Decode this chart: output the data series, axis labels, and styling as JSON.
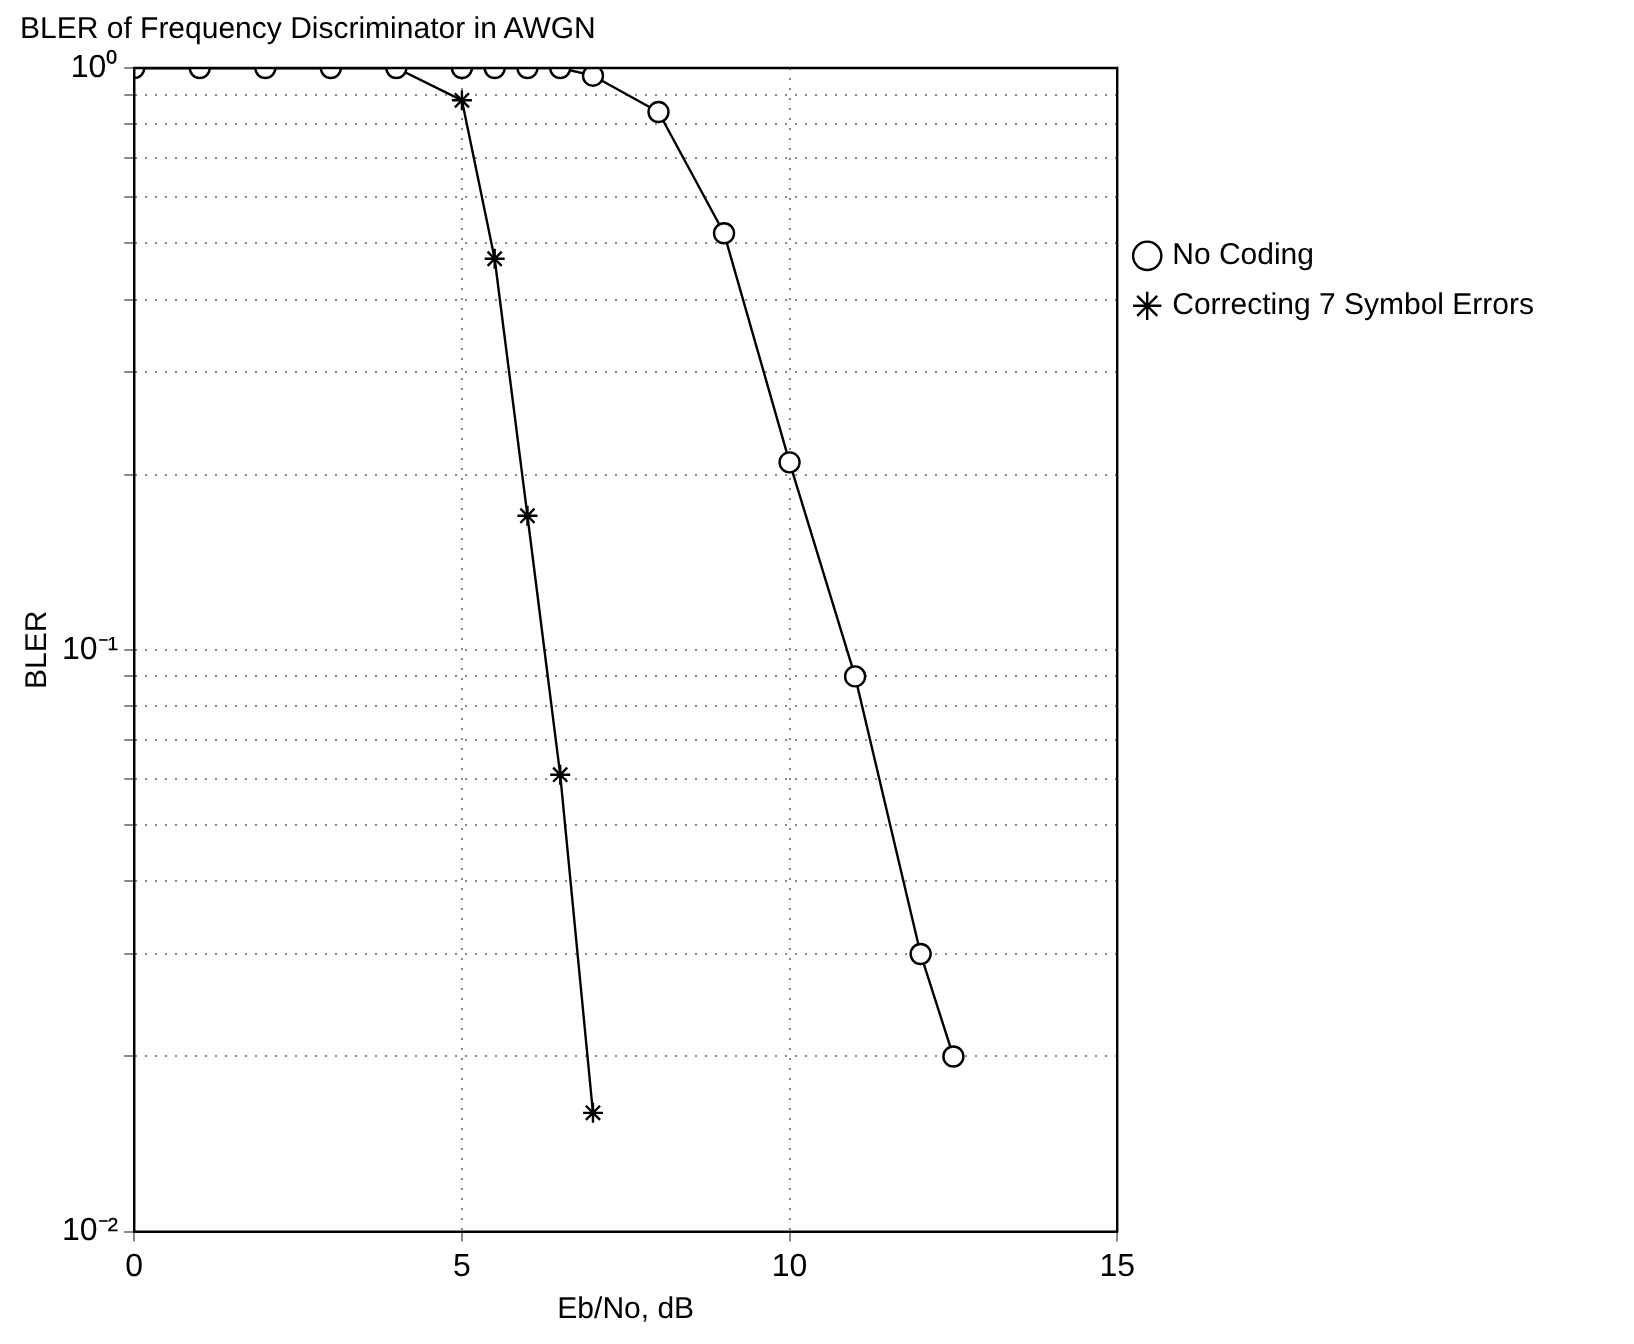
{
  "chart_data": {
    "type": "line",
    "title": "BLER of Frequency Discriminator in AWGN",
    "xlabel": "Eb/No, dB",
    "ylabel": "BLER",
    "xlim": [
      0,
      15
    ],
    "xticks": [
      0,
      5,
      10,
      15
    ],
    "ylim": [
      0.01,
      1
    ],
    "yticks": [
      {
        "value": 0.01,
        "label": "10⁻²"
      },
      {
        "value": 0.02,
        "label": null
      },
      {
        "value": 0.03,
        "label": null
      },
      {
        "value": 0.04,
        "label": null
      },
      {
        "value": 0.05,
        "label": null
      },
      {
        "value": 0.06,
        "label": null
      },
      {
        "value": 0.07,
        "label": null
      },
      {
        "value": 0.08,
        "label": null
      },
      {
        "value": 0.09,
        "label": null
      },
      {
        "value": 0.1,
        "label": "10⁻¹"
      },
      {
        "value": 0.2,
        "label": null
      },
      {
        "value": 0.3,
        "label": null
      },
      {
        "value": 0.4,
        "label": null
      },
      {
        "value": 0.5,
        "label": null
      },
      {
        "value": 0.6,
        "label": null
      },
      {
        "value": 0.7,
        "label": null
      },
      {
        "value": 0.8,
        "label": null
      },
      {
        "value": 0.9,
        "label": null
      },
      {
        "value": 1,
        "label": "10⁰"
      }
    ],
    "log": "y",
    "grid": true,
    "legend": "right",
    "line_style": "solid",
    "series": [
      {
        "name": "No Coding",
        "color": "#000000",
        "marker": "circle",
        "x": [
          0,
          1,
          2,
          3,
          4,
          5,
          5.5,
          6,
          6.5,
          7,
          8,
          9,
          10,
          11,
          12,
          12.5
        ],
        "values": [
          1,
          1,
          1,
          1,
          1,
          1,
          1,
          1,
          1,
          0.97,
          0.84,
          0.52,
          0.21,
          0.09,
          0.03,
          0.02
        ]
      },
      {
        "name": "Correcting 7 Symbol Errors",
        "color": "#000000",
        "marker": "cross",
        "x": [
          0,
          1,
          2,
          3,
          4,
          5,
          5.5,
          6,
          6.5,
          7
        ],
        "values": [
          1,
          1,
          1,
          1,
          1,
          0.88,
          0.47,
          0.17,
          0.061,
          0.016
        ]
      }
    ]
  }
}
